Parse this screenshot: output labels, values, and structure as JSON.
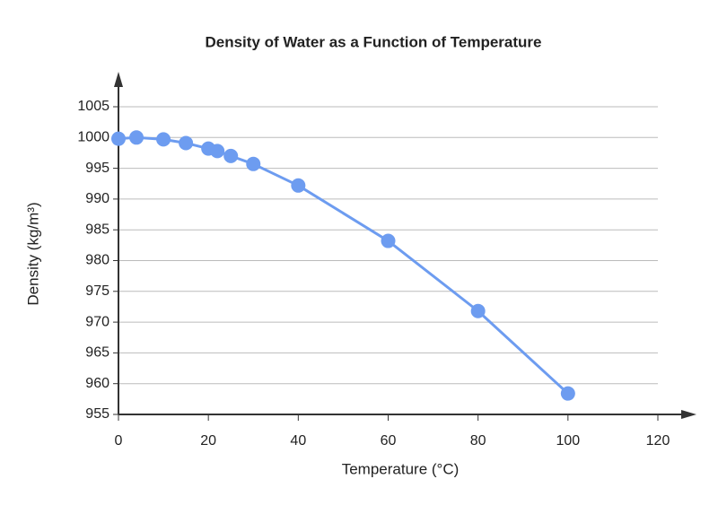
{
  "chart_data": {
    "type": "line",
    "title": "Density of Water as a Function of Temperature",
    "x_label": "Temperature (°C)",
    "y_label": "Density (kg/m³)",
    "x": [
      0,
      4,
      10,
      15,
      20,
      22,
      25,
      30,
      40,
      60,
      80,
      100
    ],
    "series": [
      {
        "color": "#6d9cf0",
        "values": [
          999.8,
          1000.0,
          999.7,
          999.1,
          998.2,
          997.8,
          997.0,
          995.7,
          992.2,
          983.2,
          971.8,
          958.4
        ]
      }
    ],
    "xlim": [
      0,
      120
    ],
    "xticks": [
      0,
      20,
      40,
      60,
      80,
      100,
      120
    ],
    "ylim": [
      955,
      1005
    ],
    "yticks": [
      955,
      960,
      965,
      970,
      975,
      980,
      985,
      990,
      995,
      1000,
      1005
    ],
    "grid": true
  }
}
